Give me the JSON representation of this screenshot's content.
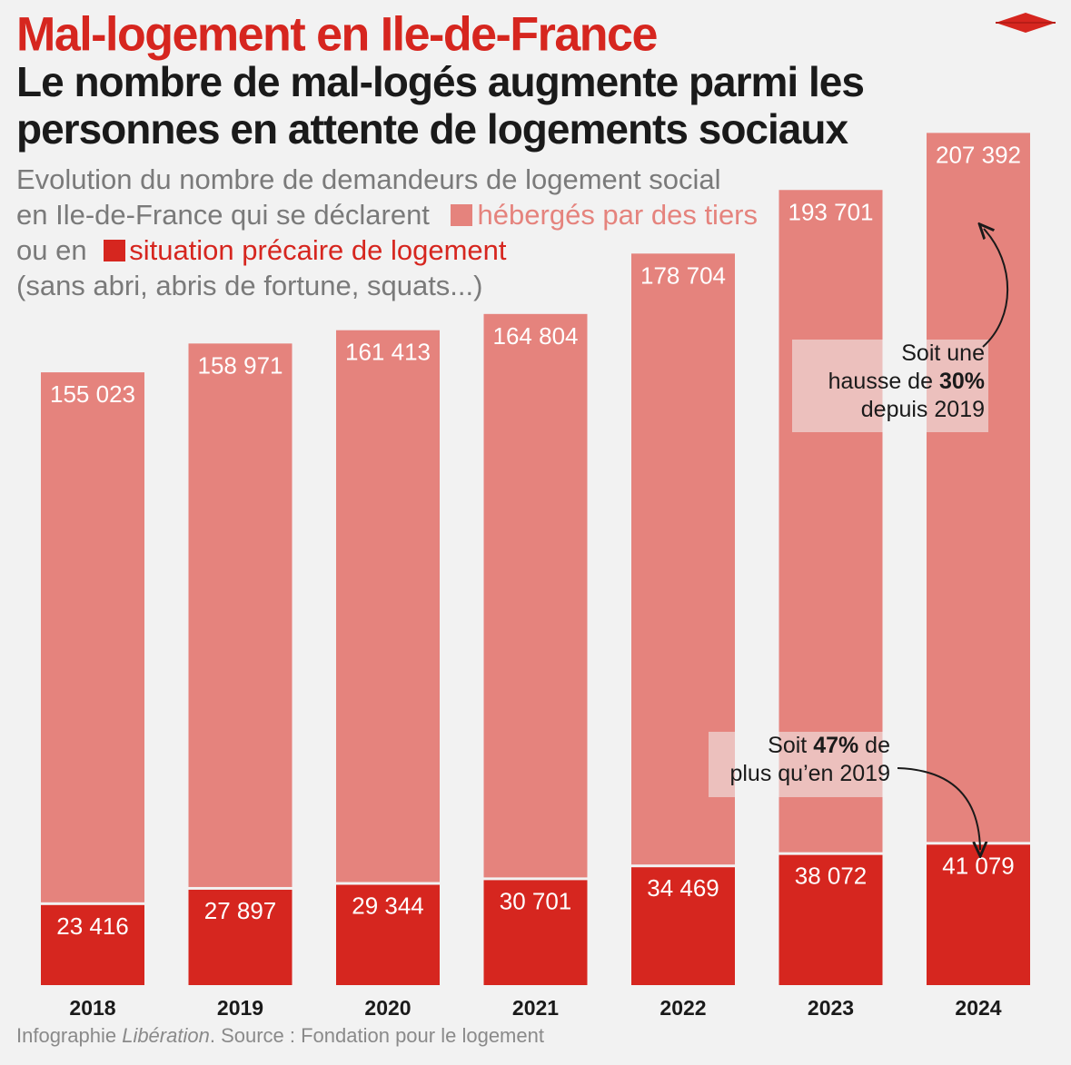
{
  "header": {
    "kicker": "Mal-logement en Ile-de-France",
    "title": "Le nombre de mal-logés augmente parmi les personnes en attente de logements sociaux",
    "subtitle_line1": "Evolution du nombre de demandeurs de logement social",
    "subtitle_line2_prefix": "en Ile-de-France qui se déclarent",
    "legend_light": "hébergés par des tiers",
    "subtitle_line3_prefix": "ou en",
    "legend_dark": "situation précaire de logement",
    "subtitle_line4": "(sans abri, abris de fortune, squats...)"
  },
  "colors": {
    "light": "#e5837d",
    "dark": "#d6261f",
    "accent": "#d6261f",
    "background": "#f2f2f2"
  },
  "annotations": {
    "top_pre": "Soit une",
    "top_mid_pre": "hausse de ",
    "top_bold": "30%",
    "top_post": "depuis 2019",
    "bottom_pre": "Soit ",
    "bottom_bold": "47%",
    "bottom_mid": " de",
    "bottom_post": "plus qu’en 2019"
  },
  "footer": {
    "prefix": "Infographie ",
    "brand": "Libération",
    "suffix": ". Source : Fondation pour le logement"
  },
  "chart_data": {
    "type": "bar",
    "stacked": true,
    "categories": [
      "2018",
      "2019",
      "2020",
      "2021",
      "2022",
      "2023",
      "2024"
    ],
    "series": [
      {
        "name": "situation précaire de logement",
        "values": [
          23416,
          27897,
          29344,
          30701,
          34469,
          38072,
          41079
        ],
        "labels": [
          "23 416",
          "27 897",
          "29 344",
          "30 701",
          "34 469",
          "38 072",
          "41 079"
        ]
      },
      {
        "name": "hébergés par des tiers",
        "values": [
          155023,
          158971,
          161413,
          164804,
          178704,
          193701,
          207392
        ],
        "labels": [
          "155 023",
          "158 971",
          "161 413",
          "164 804",
          "178 704",
          "193 701",
          "207 392"
        ]
      }
    ],
    "title": "Evolution du nombre de demandeurs de logement social en Ile-de-France",
    "xlabel": "",
    "ylabel": "",
    "grid": false
  }
}
